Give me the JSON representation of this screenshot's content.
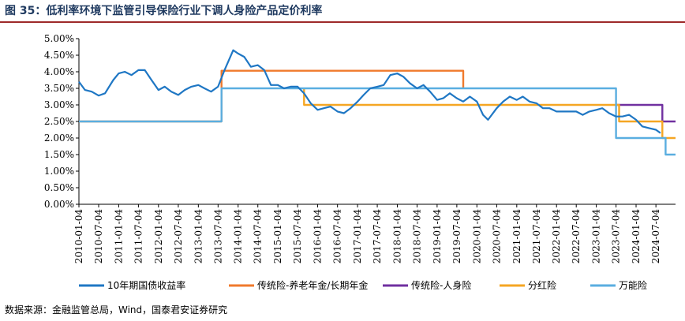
{
  "title": "图 35：低利率环境下监管引导保险行业下调人身险产品定价利率",
  "source": "数据来源：金融监管总局，Wind，国泰君安证券研究",
  "chart_data": {
    "type": "line",
    "title": "图 35：低利率环境下监管引导保险行业下调人身险产品定价利率",
    "xlabel": "",
    "ylabel": "",
    "xlim": [
      "2010-01-04",
      "2024-12-31"
    ],
    "ylim": [
      0,
      5
    ],
    "y_ticks": [
      "0.00%",
      "0.50%",
      "1.00%",
      "1.50%",
      "2.00%",
      "2.50%",
      "3.00%",
      "3.50%",
      "4.00%",
      "4.50%",
      "5.00%"
    ],
    "x_ticks": [
      "2010-01-04",
      "2010-07-04",
      "2011-01-04",
      "2011-07-04",
      "2012-01-04",
      "2012-07-04",
      "2013-01-04",
      "2013-07-04",
      "2014-01-04",
      "2014-07-04",
      "2015-01-04",
      "2015-07-04",
      "2016-01-04",
      "2016-07-04",
      "2017-01-04",
      "2017-07-04",
      "2018-01-04",
      "2018-07-04",
      "2019-01-04",
      "2019-07-04",
      "2020-01-04",
      "2020-07-04",
      "2021-01-04",
      "2021-07-04",
      "2022-01-04",
      "2022-07-04",
      "2023-01-04",
      "2023-07-04",
      "2024-01-04",
      "2024-07-04"
    ],
    "grid": false,
    "legend_position": "bottom",
    "series": [
      {
        "name": "10年期国债收益率",
        "color": "#1f77c4",
        "style": "line",
        "points": [
          [
            "2010-01-04",
            3.7
          ],
          [
            "2010-03-01",
            3.45
          ],
          [
            "2010-05-01",
            3.4
          ],
          [
            "2010-07-04",
            3.28
          ],
          [
            "2010-09-01",
            3.35
          ],
          [
            "2010-11-15",
            3.75
          ],
          [
            "2011-01-04",
            3.95
          ],
          [
            "2011-03-01",
            4.0
          ],
          [
            "2011-05-01",
            3.9
          ],
          [
            "2011-07-04",
            4.05
          ],
          [
            "2011-09-01",
            4.05
          ],
          [
            "2011-11-01",
            3.75
          ],
          [
            "2012-01-04",
            3.45
          ],
          [
            "2012-03-01",
            3.55
          ],
          [
            "2012-05-01",
            3.4
          ],
          [
            "2012-07-04",
            3.3
          ],
          [
            "2012-09-01",
            3.45
          ],
          [
            "2012-11-01",
            3.55
          ],
          [
            "2013-01-04",
            3.6
          ],
          [
            "2013-03-01",
            3.5
          ],
          [
            "2013-05-01",
            3.4
          ],
          [
            "2013-07-04",
            3.55
          ],
          [
            "2013-09-01",
            4.05
          ],
          [
            "2013-11-20",
            4.65
          ],
          [
            "2014-01-04",
            4.55
          ],
          [
            "2014-03-01",
            4.45
          ],
          [
            "2014-05-01",
            4.15
          ],
          [
            "2014-07-04",
            4.2
          ],
          [
            "2014-09-01",
            4.05
          ],
          [
            "2014-11-01",
            3.6
          ],
          [
            "2015-01-04",
            3.6
          ],
          [
            "2015-03-01",
            3.5
          ],
          [
            "2015-05-01",
            3.55
          ],
          [
            "2015-07-04",
            3.55
          ],
          [
            "2015-09-01",
            3.35
          ],
          [
            "2015-11-01",
            3.05
          ],
          [
            "2016-01-04",
            2.85
          ],
          [
            "2016-03-01",
            2.9
          ],
          [
            "2016-05-01",
            2.95
          ],
          [
            "2016-07-04",
            2.8
          ],
          [
            "2016-09-01",
            2.75
          ],
          [
            "2016-11-01",
            2.9
          ],
          [
            "2017-01-04",
            3.1
          ],
          [
            "2017-03-01",
            3.3
          ],
          [
            "2017-05-01",
            3.5
          ],
          [
            "2017-07-04",
            3.55
          ],
          [
            "2017-09-01",
            3.6
          ],
          [
            "2017-11-01",
            3.9
          ],
          [
            "2018-01-04",
            3.95
          ],
          [
            "2018-03-01",
            3.85
          ],
          [
            "2018-05-01",
            3.65
          ],
          [
            "2018-07-04",
            3.5
          ],
          [
            "2018-09-01",
            3.6
          ],
          [
            "2018-11-01",
            3.4
          ],
          [
            "2019-01-04",
            3.15
          ],
          [
            "2019-03-01",
            3.2
          ],
          [
            "2019-05-01",
            3.35
          ],
          [
            "2019-07-04",
            3.2
          ],
          [
            "2019-09-01",
            3.1
          ],
          [
            "2019-11-01",
            3.25
          ],
          [
            "2020-01-04",
            3.1
          ],
          [
            "2020-03-01",
            2.7
          ],
          [
            "2020-04-15",
            2.55
          ],
          [
            "2020-07-04",
            2.9
          ],
          [
            "2020-09-01",
            3.1
          ],
          [
            "2020-11-01",
            3.25
          ],
          [
            "2021-01-04",
            3.15
          ],
          [
            "2021-03-01",
            3.25
          ],
          [
            "2021-05-01",
            3.1
          ],
          [
            "2021-07-04",
            3.05
          ],
          [
            "2021-09-01",
            2.9
          ],
          [
            "2021-11-01",
            2.9
          ],
          [
            "2022-01-04",
            2.8
          ],
          [
            "2022-03-01",
            2.8
          ],
          [
            "2022-05-01",
            2.8
          ],
          [
            "2022-07-04",
            2.8
          ],
          [
            "2022-09-01",
            2.7
          ],
          [
            "2022-11-01",
            2.8
          ],
          [
            "2023-01-04",
            2.85
          ],
          [
            "2023-03-01",
            2.9
          ],
          [
            "2023-05-01",
            2.75
          ],
          [
            "2023-07-04",
            2.65
          ],
          [
            "2023-09-01",
            2.65
          ],
          [
            "2023-11-01",
            2.7
          ],
          [
            "2024-01-04",
            2.55
          ],
          [
            "2024-03-01",
            2.35
          ],
          [
            "2024-05-01",
            2.3
          ],
          [
            "2024-07-04",
            2.25
          ],
          [
            "2024-08-15",
            2.15
          ]
        ]
      },
      {
        "name": "传统险-养老年金/长期年金",
        "color": "#f07a2c",
        "style": "step",
        "points": [
          [
            "2010-01-04",
            2.5
          ],
          [
            "2013-08-05",
            2.5
          ],
          [
            "2013-08-05",
            4.03
          ],
          [
            "2019-09-01",
            4.03
          ],
          [
            "2019-09-01",
            3.5
          ]
        ]
      },
      {
        "name": "传统险-人身险",
        "color": "#7030a0",
        "style": "step",
        "points": [
          [
            "2023-07-04",
            3.0
          ],
          [
            "2024-09-01",
            3.0
          ],
          [
            "2024-09-01",
            2.5
          ],
          [
            "2024-12-31",
            2.5
          ]
        ]
      },
      {
        "name": "分红险",
        "color": "#f5a623",
        "style": "step",
        "points": [
          [
            "2015-09-01",
            3.5
          ],
          [
            "2015-09-01",
            3.0
          ],
          [
            "2023-08-01",
            3.0
          ],
          [
            "2023-08-01",
            2.5
          ],
          [
            "2024-09-01",
            2.5
          ],
          [
            "2024-09-01",
            2.0
          ],
          [
            "2024-12-31",
            2.0
          ]
        ]
      },
      {
        "name": "万能险",
        "color": "#5aaee0",
        "style": "step",
        "points": [
          [
            "2010-01-04",
            2.5
          ],
          [
            "2013-08-05",
            2.5
          ],
          [
            "2013-08-05",
            3.5
          ],
          [
            "2023-07-04",
            3.5
          ],
          [
            "2023-07-04",
            2.0
          ],
          [
            "2024-10-01",
            2.0
          ],
          [
            "2024-10-01",
            1.5
          ],
          [
            "2024-12-31",
            1.5
          ]
        ]
      }
    ]
  }
}
